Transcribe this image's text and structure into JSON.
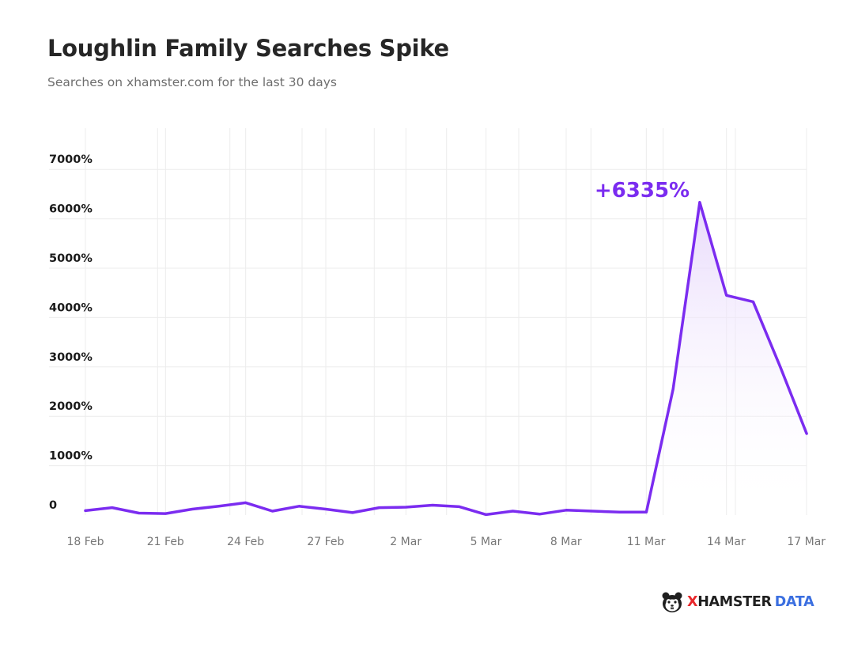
{
  "header": {
    "title": "Loughlin Family Searches Spike",
    "subtitle": "Searches on xhamster.com for the last 30 days"
  },
  "colors": {
    "line": "#7b2cf0",
    "fill_top": "#e6d6fb",
    "grid": "#ececec"
  },
  "brand": {
    "x": "X",
    "hamster": "HAMSTER",
    "data": "DATA",
    "logo_icon": "hamster-icon"
  },
  "chart_data": {
    "type": "area",
    "y_ticks": [
      "0",
      "1000%",
      "2000%",
      "3000%",
      "4000%",
      "5000%",
      "6000%",
      "7000%"
    ],
    "x_tick_labels": [
      "18 Feb",
      "21 Feb",
      "24 Feb",
      "27 Feb",
      "2 Mar",
      "5 Mar",
      "8 Mar",
      "11 Mar",
      "14 Mar",
      "17 Mar"
    ],
    "x": [
      "18 Feb",
      "19 Feb",
      "20 Feb",
      "21 Feb",
      "22 Feb",
      "23 Feb",
      "24 Feb",
      "25 Feb",
      "26 Feb",
      "27 Feb",
      "28 Feb",
      "1 Mar",
      "2 Mar",
      "3 Mar",
      "4 Mar",
      "5 Mar",
      "6 Mar",
      "7 Mar",
      "8 Mar",
      "9 Mar",
      "10 Mar",
      "11 Mar",
      "12 Mar",
      "13 Mar",
      "14 Mar",
      "15 Mar",
      "16 Mar",
      "17 Mar"
    ],
    "series": [
      {
        "values": [
          90,
          150,
          40,
          30,
          120,
          180,
          250,
          80,
          180,
          120,
          50,
          150,
          160,
          200,
          170,
          10,
          80,
          20,
          100,
          80,
          60,
          60,
          2550,
          6335,
          4450,
          4320,
          3020,
          1650
        ]
      }
    ],
    "ylim": [
      0,
      7000
    ],
    "peak_annotation": "+6335%",
    "grid": true
  }
}
